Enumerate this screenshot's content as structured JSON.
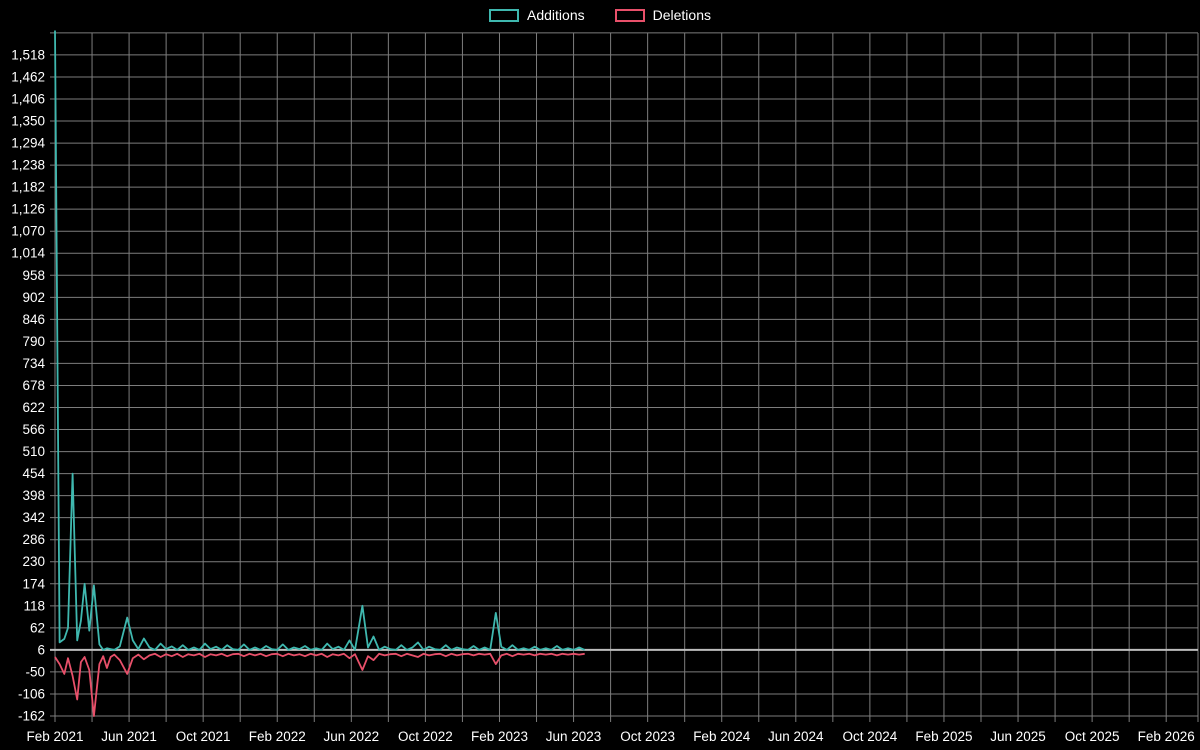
{
  "legend": {
    "additions": "Additions",
    "deletions": "Deletions"
  },
  "colors": {
    "additions": "#3fb8af",
    "deletions": "#e8506a",
    "grid": "#7d7d7d",
    "axis": "#bdbdbd",
    "background": "#000000",
    "text": "#ffffff"
  },
  "chart_data": {
    "type": "line",
    "title": "",
    "xlabel": "",
    "ylabel": "",
    "legend_position": "top-center",
    "grid": true,
    "ylim": [
      -177,
      1582
    ],
    "x_axis": {
      "start_month": 0,
      "end_month": 60,
      "grid_every_months": 2,
      "label_every_months": 4,
      "labels": [
        "Feb 2021",
        "Jun 2021",
        "Oct 2021",
        "Feb 2022",
        "Jun 2022",
        "Oct 2022",
        "Feb 2023",
        "Jun 2023",
        "Oct 2023",
        "Feb 2024",
        "Jun 2024",
        "Oct 2024",
        "Feb 2025",
        "Jun 2025",
        "Oct 2025",
        "Feb 2026"
      ]
    },
    "y_axis": {
      "tick_step": 56,
      "tick_values": [
        -162,
        -106,
        -50,
        6,
        62,
        118,
        174,
        230,
        286,
        342,
        398,
        454,
        510,
        566,
        622,
        678,
        734,
        790,
        846,
        902,
        958,
        1014,
        1070,
        1126,
        1182,
        1238,
        1294,
        1350,
        1406,
        1462,
        1518
      ],
      "tick_labels": [
        "-162",
        "-106",
        "-50",
        "6",
        "62",
        "118",
        "174",
        "230",
        "286",
        "342",
        "398",
        "454",
        "510",
        "566",
        "622",
        "678",
        "734",
        "790",
        "846",
        "902",
        "958",
        "1,014",
        "1,070",
        "1,126",
        "1,182",
        "1,238",
        "1,294",
        "1,350",
        "1,406",
        "1,462",
        "1,518"
      ]
    },
    "series": [
      {
        "name": "Additions",
        "color_key": "additions",
        "points": [
          [
            0,
            1580
          ],
          [
            0.25,
            25
          ],
          [
            0.5,
            34
          ],
          [
            0.7,
            62
          ],
          [
            0.95,
            454
          ],
          [
            1.2,
            30
          ],
          [
            1.4,
            80
          ],
          [
            1.6,
            174
          ],
          [
            1.85,
            55
          ],
          [
            2.1,
            170
          ],
          [
            2.4,
            20
          ],
          [
            2.6,
            6
          ],
          [
            2.8,
            10
          ],
          [
            3.0,
            8
          ],
          [
            3.2,
            6
          ],
          [
            3.5,
            15
          ],
          [
            3.9,
            88
          ],
          [
            4.2,
            30
          ],
          [
            4.5,
            8
          ],
          [
            4.8,
            35
          ],
          [
            5.1,
            12
          ],
          [
            5.4,
            6
          ],
          [
            5.7,
            22
          ],
          [
            6.0,
            8
          ],
          [
            6.3,
            15
          ],
          [
            6.6,
            6
          ],
          [
            6.9,
            18
          ],
          [
            7.2,
            6
          ],
          [
            7.5,
            12
          ],
          [
            7.8,
            6
          ],
          [
            8.1,
            22
          ],
          [
            8.4,
            8
          ],
          [
            8.7,
            14
          ],
          [
            9.0,
            6
          ],
          [
            9.3,
            18
          ],
          [
            9.6,
            8
          ],
          [
            9.9,
            6
          ],
          [
            10.2,
            20
          ],
          [
            10.5,
            6
          ],
          [
            10.8,
            12
          ],
          [
            11.1,
            6
          ],
          [
            11.4,
            16
          ],
          [
            11.7,
            8
          ],
          [
            12.0,
            6
          ],
          [
            12.3,
            20
          ],
          [
            12.6,
            6
          ],
          [
            12.9,
            12
          ],
          [
            13.2,
            8
          ],
          [
            13.5,
            16
          ],
          [
            13.8,
            6
          ],
          [
            14.1,
            10
          ],
          [
            14.4,
            6
          ],
          [
            14.7,
            22
          ],
          [
            15.0,
            8
          ],
          [
            15.3,
            14
          ],
          [
            15.6,
            6
          ],
          [
            15.9,
            30
          ],
          [
            16.2,
            6
          ],
          [
            16.6,
            118
          ],
          [
            16.9,
            12
          ],
          [
            17.2,
            40
          ],
          [
            17.5,
            6
          ],
          [
            17.8,
            14
          ],
          [
            18.1,
            8
          ],
          [
            18.4,
            6
          ],
          [
            18.7,
            18
          ],
          [
            19.0,
            6
          ],
          [
            19.3,
            12
          ],
          [
            19.6,
            25
          ],
          [
            19.9,
            6
          ],
          [
            20.2,
            14
          ],
          [
            20.5,
            8
          ],
          [
            20.8,
            6
          ],
          [
            21.1,
            18
          ],
          [
            21.4,
            6
          ],
          [
            21.7,
            12
          ],
          [
            22.0,
            8
          ],
          [
            22.3,
            6
          ],
          [
            22.6,
            16
          ],
          [
            22.9,
            6
          ],
          [
            23.2,
            12
          ],
          [
            23.5,
            6
          ],
          [
            23.8,
            100
          ],
          [
            24.1,
            14
          ],
          [
            24.4,
            6
          ],
          [
            24.7,
            18
          ],
          [
            25.0,
            6
          ],
          [
            25.3,
            10
          ],
          [
            25.6,
            6
          ],
          [
            25.9,
            14
          ],
          [
            26.2,
            6
          ],
          [
            26.5,
            10
          ],
          [
            26.8,
            6
          ],
          [
            27.1,
            16
          ],
          [
            27.4,
            6
          ],
          [
            27.7,
            10
          ],
          [
            28.0,
            6
          ],
          [
            28.3,
            12
          ],
          [
            28.6,
            6
          ]
        ]
      },
      {
        "name": "Deletions",
        "color_key": "deletions",
        "points": [
          [
            0,
            -12
          ],
          [
            0.25,
            -30
          ],
          [
            0.5,
            -55
          ],
          [
            0.7,
            -15
          ],
          [
            0.95,
            -60
          ],
          [
            1.2,
            -120
          ],
          [
            1.4,
            -25
          ],
          [
            1.6,
            -12
          ],
          [
            1.85,
            -45
          ],
          [
            2.1,
            -162
          ],
          [
            2.4,
            -30
          ],
          [
            2.6,
            -10
          ],
          [
            2.8,
            -40
          ],
          [
            3.0,
            -12
          ],
          [
            3.2,
            -6
          ],
          [
            3.5,
            -20
          ],
          [
            3.9,
            -55
          ],
          [
            4.2,
            -15
          ],
          [
            4.5,
            -6
          ],
          [
            4.8,
            -18
          ],
          [
            5.1,
            -8
          ],
          [
            5.4,
            -4
          ],
          [
            5.7,
            -12
          ],
          [
            6.0,
            -5
          ],
          [
            6.3,
            -10
          ],
          [
            6.6,
            -4
          ],
          [
            6.9,
            -12
          ],
          [
            7.2,
            -5
          ],
          [
            7.5,
            -8
          ],
          [
            7.8,
            -4
          ],
          [
            8.1,
            -12
          ],
          [
            8.4,
            -5
          ],
          [
            8.7,
            -8
          ],
          [
            9.0,
            -4
          ],
          [
            9.3,
            -10
          ],
          [
            9.6,
            -5
          ],
          [
            9.9,
            -4
          ],
          [
            10.2,
            -10
          ],
          [
            10.5,
            -4
          ],
          [
            10.8,
            -8
          ],
          [
            11.1,
            -4
          ],
          [
            11.4,
            -10
          ],
          [
            11.7,
            -5
          ],
          [
            12.0,
            -4
          ],
          [
            12.3,
            -10
          ],
          [
            12.6,
            -4
          ],
          [
            12.9,
            -8
          ],
          [
            13.2,
            -5
          ],
          [
            13.5,
            -10
          ],
          [
            13.8,
            -4
          ],
          [
            14.1,
            -8
          ],
          [
            14.4,
            -4
          ],
          [
            14.7,
            -12
          ],
          [
            15.0,
            -5
          ],
          [
            15.3,
            -8
          ],
          [
            15.6,
            -4
          ],
          [
            15.9,
            -15
          ],
          [
            16.2,
            -5
          ],
          [
            16.6,
            -45
          ],
          [
            16.9,
            -10
          ],
          [
            17.2,
            -20
          ],
          [
            17.5,
            -4
          ],
          [
            17.8,
            -8
          ],
          [
            18.1,
            -5
          ],
          [
            18.4,
            -4
          ],
          [
            18.7,
            -10
          ],
          [
            19.0,
            -4
          ],
          [
            19.3,
            -8
          ],
          [
            19.6,
            -12
          ],
          [
            19.9,
            -4
          ],
          [
            20.2,
            -8
          ],
          [
            20.5,
            -5
          ],
          [
            20.8,
            -4
          ],
          [
            21.1,
            -10
          ],
          [
            21.4,
            -4
          ],
          [
            21.7,
            -8
          ],
          [
            22.0,
            -5
          ],
          [
            22.3,
            -4
          ],
          [
            22.6,
            -8
          ],
          [
            22.9,
            -4
          ],
          [
            23.2,
            -6
          ],
          [
            23.5,
            -4
          ],
          [
            23.8,
            -30
          ],
          [
            24.1,
            -8
          ],
          [
            24.4,
            -4
          ],
          [
            24.7,
            -10
          ],
          [
            25.0,
            -4
          ],
          [
            25.3,
            -6
          ],
          [
            25.6,
            -4
          ],
          [
            25.9,
            -8
          ],
          [
            26.2,
            -4
          ],
          [
            26.5,
            -6
          ],
          [
            26.8,
            -4
          ],
          [
            27.1,
            -8
          ],
          [
            27.4,
            -4
          ],
          [
            27.7,
            -6
          ],
          [
            28.0,
            -4
          ],
          [
            28.3,
            -6
          ],
          [
            28.6,
            -4
          ]
        ]
      }
    ]
  }
}
